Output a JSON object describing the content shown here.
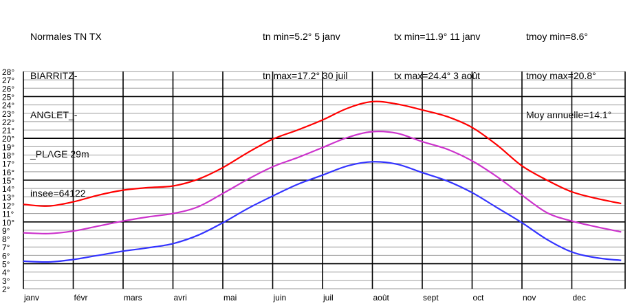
{
  "header": {
    "title_lines": [
      "Normales TN TX",
      "BIARRITZ-",
      "ANGLET_-",
      "_PLAGE 29m",
      "insee=64122"
    ],
    "tn_min": "tn min=5.2° 5 janv",
    "tn_max": "tn max=17.2° 30 juil",
    "tx_min": "tx min=11.9° 11 janv",
    "tx_max": "tx max=24.4° 3 août",
    "tmoy_min": "tmoy min=8.6°",
    "tmoy_max": "tmoy max=20.8°",
    "moy_annuelle": "Moy annuelle=14.1°"
  },
  "chart_data": {
    "type": "line",
    "title": "Normales TN TX",
    "ylim": [
      2,
      28
    ],
    "yticks": [
      "2°",
      "3°",
      "4°",
      "5°",
      "6°",
      "7°",
      "8°",
      "9°",
      "10°",
      "11°",
      "12°",
      "13°",
      "14°",
      "15°",
      "16°",
      "17°",
      "18°",
      "19°",
      "20°",
      "21°",
      "22°",
      "23°",
      "24°",
      "25°",
      "26°",
      "27°",
      "28°"
    ],
    "months": [
      "janv",
      "févr",
      "mars",
      "avri",
      "mai",
      "juin",
      "juil",
      "août",
      "sept",
      "oct",
      "nov",
      "dec"
    ],
    "grid": true,
    "series": [
      {
        "name": "tx",
        "color": "#ff0000",
        "points": [
          [
            0,
            12.1
          ],
          [
            0.5,
            11.9
          ],
          [
            1,
            12.4
          ],
          [
            1.5,
            13.2
          ],
          [
            2,
            13.8
          ],
          [
            2.5,
            14.1
          ],
          [
            3,
            14.3
          ],
          [
            3.5,
            15.1
          ],
          [
            4,
            16.5
          ],
          [
            4.5,
            18.3
          ],
          [
            5,
            19.9
          ],
          [
            5.5,
            21.0
          ],
          [
            6,
            22.2
          ],
          [
            6.5,
            23.6
          ],
          [
            7,
            24.4
          ],
          [
            7.5,
            24.1
          ],
          [
            8,
            23.4
          ],
          [
            8.5,
            22.6
          ],
          [
            9,
            21.3
          ],
          [
            9.5,
            19.2
          ],
          [
            10,
            16.7
          ],
          [
            10.5,
            15.0
          ],
          [
            11,
            13.6
          ],
          [
            11.5,
            12.8
          ],
          [
            11.99,
            12.2
          ]
        ]
      },
      {
        "name": "tmoy",
        "color": "#cc33cc",
        "points": [
          [
            0,
            8.7
          ],
          [
            0.5,
            8.6
          ],
          [
            1,
            8.9
          ],
          [
            1.5,
            9.5
          ],
          [
            2,
            10.1
          ],
          [
            2.5,
            10.6
          ],
          [
            3,
            11.0
          ],
          [
            3.5,
            11.8
          ],
          [
            4,
            13.4
          ],
          [
            4.5,
            15.1
          ],
          [
            5,
            16.6
          ],
          [
            5.5,
            17.7
          ],
          [
            6,
            18.9
          ],
          [
            6.5,
            20.1
          ],
          [
            7,
            20.8
          ],
          [
            7.5,
            20.6
          ],
          [
            8,
            19.6
          ],
          [
            8.5,
            18.7
          ],
          [
            9,
            17.3
          ],
          [
            9.5,
            15.4
          ],
          [
            10,
            13.2
          ],
          [
            10.5,
            11.1
          ],
          [
            11,
            10.1
          ],
          [
            11.5,
            9.4
          ],
          [
            11.99,
            8.8
          ]
        ]
      },
      {
        "name": "tn",
        "color": "#3333ff",
        "points": [
          [
            0,
            5.3
          ],
          [
            0.5,
            5.2
          ],
          [
            1,
            5.5
          ],
          [
            1.5,
            6.0
          ],
          [
            2,
            6.5
          ],
          [
            2.5,
            6.9
          ],
          [
            3,
            7.4
          ],
          [
            3.5,
            8.4
          ],
          [
            4,
            9.9
          ],
          [
            4.5,
            11.6
          ],
          [
            5,
            13.1
          ],
          [
            5.5,
            14.5
          ],
          [
            6,
            15.6
          ],
          [
            6.5,
            16.7
          ],
          [
            7,
            17.2
          ],
          [
            7.5,
            16.9
          ],
          [
            8,
            15.9
          ],
          [
            8.5,
            14.9
          ],
          [
            9,
            13.5
          ],
          [
            9.5,
            11.7
          ],
          [
            10,
            9.9
          ],
          [
            10.5,
            7.9
          ],
          [
            11,
            6.4
          ],
          [
            11.5,
            5.7
          ],
          [
            11.99,
            5.4
          ]
        ]
      }
    ]
  }
}
